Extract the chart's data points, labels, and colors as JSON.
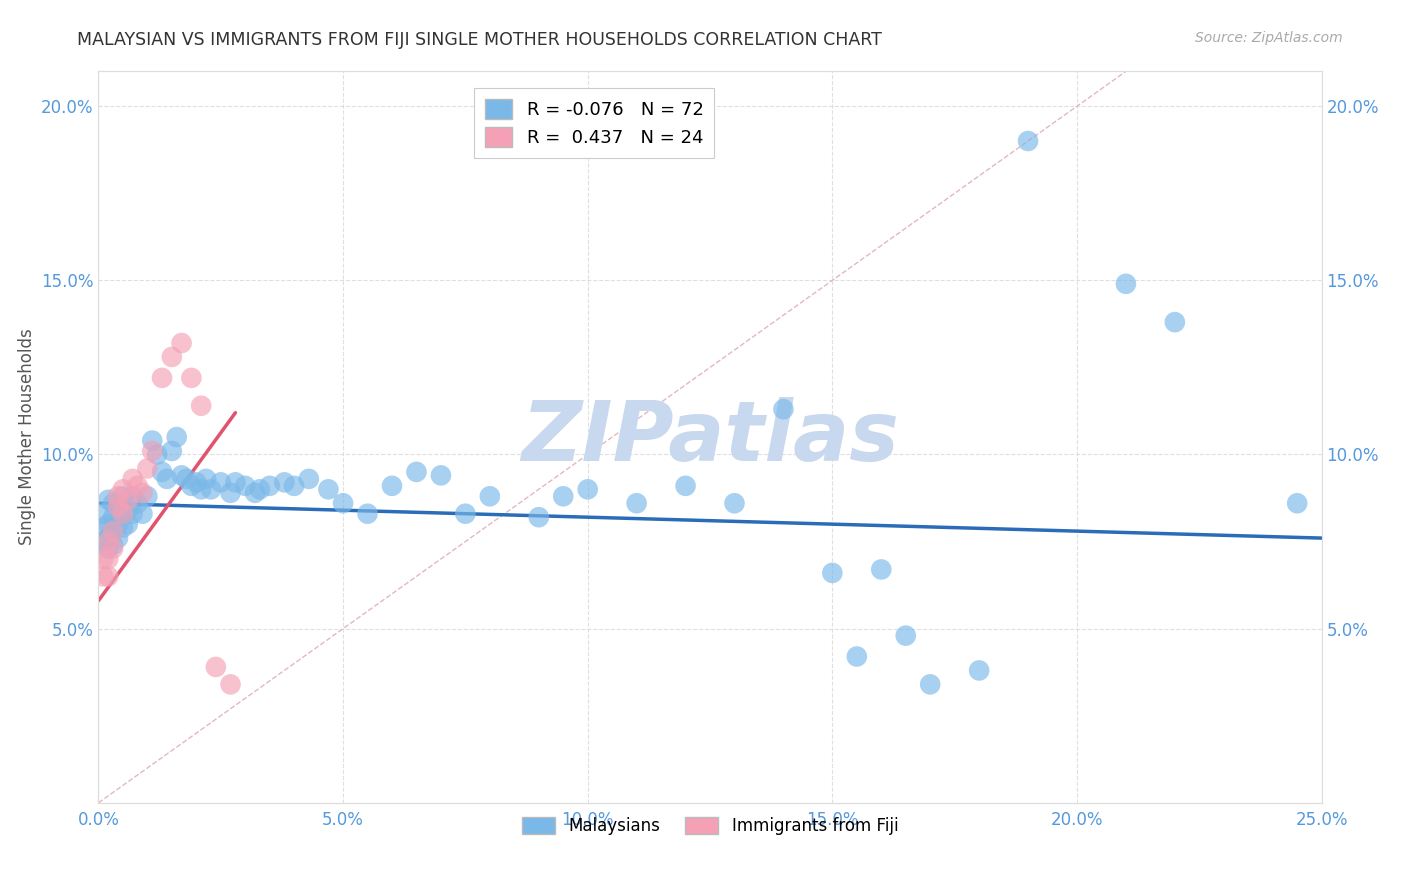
{
  "title": "MALAYSIAN VS IMMIGRANTS FROM FIJI SINGLE MOTHER HOUSEHOLDS CORRELATION CHART",
  "source": "Source: ZipAtlas.com",
  "ylabel": "Single Mother Households",
  "xlim": [
    0.0,
    0.25
  ],
  "ylim": [
    0.0,
    0.21
  ],
  "xticks": [
    0.0,
    0.05,
    0.1,
    0.15,
    0.2,
    0.25
  ],
  "yticks": [
    0.05,
    0.1,
    0.15,
    0.2
  ],
  "xticklabels": [
    "0.0%",
    "5.0%",
    "10.0%",
    "15.0%",
    "20.0%",
    "25.0%"
  ],
  "yticklabels": [
    "5.0%",
    "10.0%",
    "15.0%",
    "20.0%"
  ],
  "legend_r_blue": "R = -0.076",
  "legend_n_blue": "N = 72",
  "legend_r_pink": "R =  0.437",
  "legend_n_pink": "N = 24",
  "blue_color": "#7ab8e8",
  "pink_color": "#f4a0b5",
  "blue_line_color": "#2b6cb8",
  "pink_line_color": "#e0536e",
  "grid_color": "#d8d8d8",
  "diagonal_color": "#e0b0b8",
  "background_color": "#ffffff",
  "title_color": "#333333",
  "axis_label_color": "#555555",
  "tick_label_color": "#5599dd",
  "watermark_color": "#c8d8ee",
  "malaysians_x": [
    0.001,
    0.001,
    0.001,
    0.002,
    0.002,
    0.002,
    0.002,
    0.003,
    0.003,
    0.003,
    0.003,
    0.004,
    0.004,
    0.004,
    0.005,
    0.005,
    0.005,
    0.006,
    0.006,
    0.007,
    0.007,
    0.008,
    0.009,
    0.01,
    0.011,
    0.012,
    0.013,
    0.014,
    0.015,
    0.016,
    0.017,
    0.018,
    0.019,
    0.02,
    0.021,
    0.022,
    0.023,
    0.025,
    0.027,
    0.028,
    0.03,
    0.032,
    0.033,
    0.035,
    0.038,
    0.04,
    0.043,
    0.047,
    0.05,
    0.055,
    0.06,
    0.065,
    0.07,
    0.075,
    0.08,
    0.09,
    0.095,
    0.1,
    0.11,
    0.12,
    0.13,
    0.14,
    0.15,
    0.155,
    0.16,
    0.165,
    0.17,
    0.18,
    0.19,
    0.21,
    0.22,
    0.245
  ],
  "malaysians_y": [
    0.083,
    0.079,
    0.075,
    0.087,
    0.08,
    0.076,
    0.073,
    0.086,
    0.082,
    0.078,
    0.074,
    0.085,
    0.08,
    0.076,
    0.088,
    0.083,
    0.079,
    0.084,
    0.08,
    0.088,
    0.083,
    0.086,
    0.083,
    0.088,
    0.104,
    0.1,
    0.095,
    0.093,
    0.101,
    0.105,
    0.094,
    0.093,
    0.091,
    0.092,
    0.09,
    0.093,
    0.09,
    0.092,
    0.089,
    0.092,
    0.091,
    0.089,
    0.09,
    0.091,
    0.092,
    0.091,
    0.093,
    0.09,
    0.086,
    0.083,
    0.091,
    0.095,
    0.094,
    0.083,
    0.088,
    0.082,
    0.088,
    0.09,
    0.086,
    0.091,
    0.086,
    0.113,
    0.066,
    0.042,
    0.067,
    0.048,
    0.034,
    0.038,
    0.19,
    0.149,
    0.138,
    0.086
  ],
  "fiji_x": [
    0.001,
    0.001,
    0.002,
    0.002,
    0.002,
    0.003,
    0.003,
    0.004,
    0.004,
    0.005,
    0.005,
    0.006,
    0.007,
    0.008,
    0.009,
    0.01,
    0.011,
    0.013,
    0.015,
    0.017,
    0.019,
    0.021,
    0.024,
    0.027
  ],
  "fiji_y": [
    0.07,
    0.065,
    0.075,
    0.07,
    0.065,
    0.078,
    0.073,
    0.085,
    0.088,
    0.09,
    0.083,
    0.087,
    0.093,
    0.091,
    0.089,
    0.096,
    0.101,
    0.122,
    0.128,
    0.132,
    0.122,
    0.114,
    0.039,
    0.034
  ],
  "blue_line_x": [
    0.0,
    0.25
  ],
  "blue_line_y": [
    0.086,
    0.076
  ],
  "pink_line_x": [
    0.0,
    0.028
  ],
  "pink_line_y": [
    0.058,
    0.112
  ]
}
